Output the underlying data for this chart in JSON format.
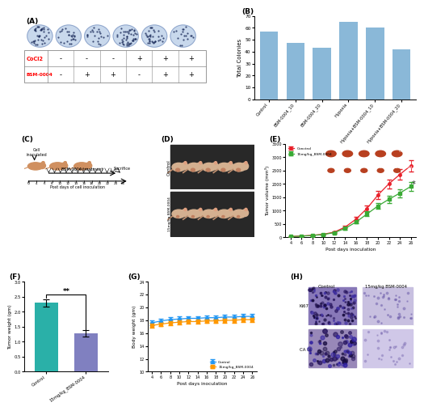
{
  "panel_B": {
    "categories": [
      "Control",
      "BSM-0004_10",
      "BSM-0004_20",
      "Hypoxia",
      "Hypoxia+BSM-0004_10",
      "Hypoxia+BSM-0004_20"
    ],
    "values": [
      57,
      47,
      43,
      65,
      60,
      42
    ],
    "bar_color_top": "#a8c8e8",
    "bar_color_bot": "#4a7fb0",
    "ylabel": "Total Colonies",
    "ylim": [
      0,
      70
    ],
    "yticks": [
      0,
      10,
      20,
      30,
      40,
      50,
      60,
      70
    ]
  },
  "panel_E": {
    "days": [
      4,
      6,
      8,
      10,
      12,
      14,
      16,
      18,
      20,
      22,
      24,
      26
    ],
    "control": [
      25,
      45,
      70,
      110,
      190,
      380,
      680,
      1080,
      1580,
      2000,
      2350,
      2680
    ],
    "bsm": [
      22,
      40,
      65,
      100,
      170,
      330,
      570,
      870,
      1170,
      1420,
      1650,
      1900
    ],
    "control_err": [
      8,
      12,
      18,
      28,
      38,
      55,
      75,
      110,
      140,
      170,
      190,
      210
    ],
    "bsm_err": [
      8,
      10,
      15,
      22,
      30,
      45,
      60,
      90,
      110,
      130,
      150,
      165
    ],
    "control_color": "#e8202a",
    "bsm_color": "#3aaa35",
    "ylabel": "Tumor volume (mm³)",
    "xlabel": "Post days inoculation",
    "ylim": [
      0,
      3500
    ],
    "yticks": [
      0,
      500,
      1000,
      1500,
      2000,
      2500,
      3000,
      3500
    ]
  },
  "panel_F": {
    "categories": [
      "Control",
      "15mg/kg_BSM-0004"
    ],
    "values": [
      2.3,
      1.28
    ],
    "errors": [
      0.12,
      0.1
    ],
    "bar_colors": [
      "#2ab0a8",
      "#8080c0"
    ],
    "ylabel": "Tumor weight (gm)",
    "ylim": [
      0,
      3.0
    ],
    "yticks": [
      0.0,
      0.5,
      1.0,
      1.5,
      2.0,
      2.5,
      3.0
    ]
  },
  "panel_G": {
    "days": [
      4,
      6,
      8,
      10,
      12,
      14,
      16,
      18,
      20,
      22,
      24,
      26
    ],
    "control": [
      17.6,
      17.9,
      18.1,
      18.2,
      18.3,
      18.3,
      18.4,
      18.4,
      18.5,
      18.5,
      18.6,
      18.6
    ],
    "bsm": [
      17.2,
      17.4,
      17.6,
      17.7,
      17.8,
      17.8,
      17.9,
      17.9,
      18.0,
      18.0,
      18.1,
      18.1
    ],
    "control_err": [
      0.35,
      0.35,
      0.35,
      0.35,
      0.35,
      0.35,
      0.35,
      0.35,
      0.35,
      0.35,
      0.35,
      0.35
    ],
    "bsm_err": [
      0.35,
      0.35,
      0.35,
      0.35,
      0.35,
      0.35,
      0.35,
      0.35,
      0.35,
      0.35,
      0.35,
      0.35
    ],
    "control_color": "#2196f3",
    "bsm_color": "#ff9800",
    "ylabel": "Body weight (gm)",
    "xlabel": "Post days inoculation",
    "ylim": [
      10,
      24
    ],
    "yticks": [
      10,
      12,
      14,
      16,
      18,
      20,
      22,
      24
    ]
  },
  "panel_A": {
    "n_dots": [
      38,
      24,
      20,
      45,
      33,
      18
    ],
    "cocl2_signs": [
      "-",
      "-",
      "-",
      "+",
      "+",
      "+"
    ],
    "bsm_signs": [
      "-",
      "+",
      "+",
      "-",
      "+",
      "+"
    ],
    "plate_color": "#c8d8ec",
    "dot_color": "#1a2a5a",
    "bg_color": "#ffffff"
  },
  "figure_bg": "#ffffff"
}
